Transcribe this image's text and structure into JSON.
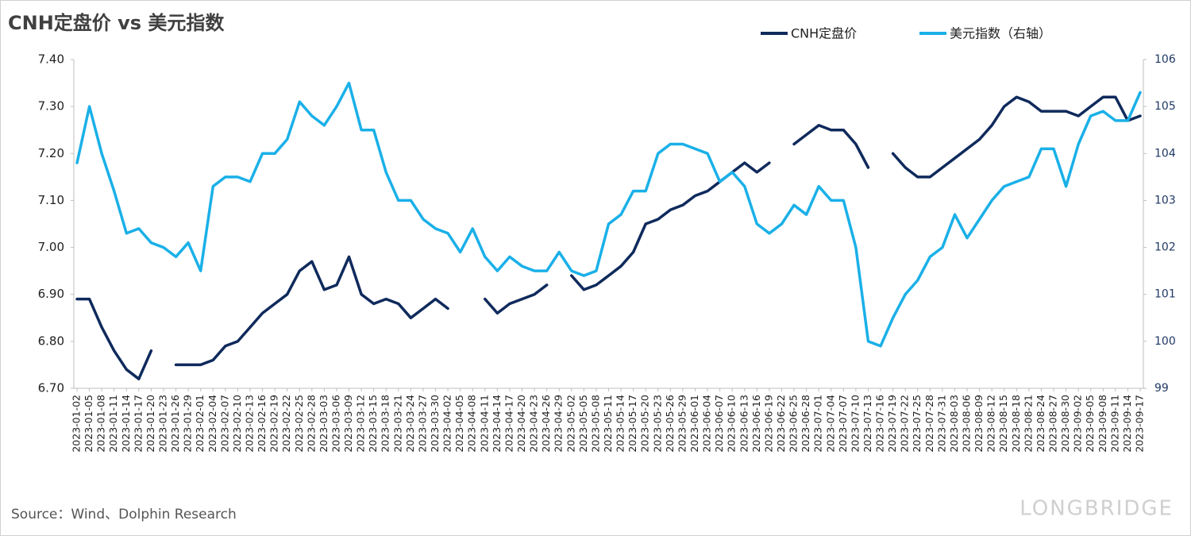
{
  "chart_data": {
    "type": "line",
    "title": "CNH定盘价 vs 美元指数",
    "source": "Source：Wind、Dolphin Research",
    "watermark": "LONGBRIDGE",
    "legend": "top-right",
    "x": [
      "2023-01-02",
      "2023-01-05",
      "2023-01-08",
      "2023-01-11",
      "2023-01-14",
      "2023-01-17",
      "2023-01-20",
      "2023-01-23",
      "2023-01-26",
      "2023-01-29",
      "2023-02-01",
      "2023-02-04",
      "2023-02-07",
      "2023-02-10",
      "2023-02-13",
      "2023-02-16",
      "2023-02-19",
      "2023-02-22",
      "2023-02-25",
      "2023-02-28",
      "2023-03-03",
      "2023-03-06",
      "2023-03-09",
      "2023-03-12",
      "2023-03-15",
      "2023-03-18",
      "2023-03-21",
      "2023-03-24",
      "2023-03-27",
      "2023-03-30",
      "2023-04-02",
      "2023-04-05",
      "2023-04-08",
      "2023-04-11",
      "2023-04-14",
      "2023-04-17",
      "2023-04-20",
      "2023-04-23",
      "2023-04-26",
      "2023-04-29",
      "2023-05-02",
      "2023-05-05",
      "2023-05-08",
      "2023-05-11",
      "2023-05-14",
      "2023-05-17",
      "2023-05-20",
      "2023-05-23",
      "2023-05-26",
      "2023-05-29",
      "2023-06-01",
      "2023-06-04",
      "2023-06-07",
      "2023-06-10",
      "2023-06-13",
      "2023-06-16",
      "2023-06-19",
      "2023-06-22",
      "2023-06-25",
      "2023-06-28",
      "2023-07-01",
      "2023-07-04",
      "2023-07-07",
      "2023-07-10",
      "2023-07-13",
      "2023-07-16",
      "2023-07-19",
      "2023-07-22",
      "2023-07-25",
      "2023-07-28",
      "2023-07-31",
      "2023-08-03",
      "2023-08-06",
      "2023-08-09",
      "2023-08-12",
      "2023-08-15",
      "2023-08-18",
      "2023-08-21",
      "2023-08-24",
      "2023-08-27",
      "2023-08-30",
      "2023-09-02",
      "2023-09-05",
      "2023-09-08",
      "2023-09-11",
      "2023-09-14",
      "2023-09-17"
    ],
    "series": [
      {
        "name": "CNH定盘价",
        "color": "#0f2a5c",
        "values": [
          6.89,
          6.89,
          6.83,
          6.78,
          6.74,
          6.72,
          6.78,
          null,
          6.75,
          6.75,
          6.75,
          6.76,
          6.79,
          6.8,
          6.83,
          6.86,
          6.88,
          6.9,
          6.95,
          6.97,
          6.91,
          6.92,
          6.98,
          6.9,
          6.88,
          6.89,
          6.88,
          6.85,
          6.87,
          6.89,
          6.87,
          null,
          null,
          6.89,
          6.86,
          6.88,
          6.89,
          6.9,
          6.92,
          null,
          6.94,
          6.91,
          6.92,
          6.94,
          6.96,
          6.99,
          7.05,
          7.06,
          7.08,
          7.09,
          7.11,
          7.12,
          7.14,
          7.16,
          7.18,
          7.16,
          7.18,
          null,
          7.22,
          7.24,
          7.26,
          7.25,
          7.25,
          7.22,
          7.17,
          null,
          7.2,
          7.17,
          7.15,
          7.15,
          7.17,
          7.19,
          7.21,
          7.23,
          7.26,
          7.3,
          7.32,
          7.31,
          7.29,
          7.29,
          7.29,
          7.28,
          7.3,
          7.32,
          7.32,
          7.27,
          7.28
        ]
      },
      {
        "name": "美元指数（右轴）",
        "color": "#1ab0e8",
        "axis": "y2",
        "values": [
          103.8,
          105,
          104,
          103.2,
          102.3,
          102.4,
          102.1,
          102.0,
          101.8,
          102.1,
          101.5,
          103.3,
          103.5,
          103.5,
          103.4,
          104.0,
          104.0,
          104.3,
          105.1,
          104.8,
          104.6,
          105.0,
          105.5,
          104.5,
          104.5,
          103.6,
          103.0,
          103.0,
          102.6,
          102.4,
          102.3,
          101.9,
          102.4,
          101.8,
          101.5,
          101.8,
          101.6,
          101.5,
          101.5,
          101.9,
          101.5,
          101.4,
          101.5,
          102.5,
          102.7,
          103.2,
          103.2,
          104.0,
          104.2,
          104.2,
          104.1,
          104.0,
          103.4,
          103.6,
          103.3,
          102.5,
          102.3,
          102.5,
          102.9,
          102.7,
          103.3,
          103.0,
          103.0,
          102.0,
          100.0,
          99.9,
          100.5,
          101.0,
          101.3,
          101.8,
          102.0,
          102.7,
          102.2,
          102.6,
          103.0,
          103.3,
          103.4,
          103.5,
          104.1,
          104.1,
          103.3,
          104.2,
          104.8,
          104.9,
          104.7,
          104.7,
          105.3
        ]
      }
    ],
    "ylim": [
      6.7,
      7.4
    ],
    "yticks": [
      {
        "value": 6.7,
        "label": "6.70"
      },
      {
        "value": 6.8,
        "label": "6.80"
      },
      {
        "value": 6.9,
        "label": "6.90"
      },
      {
        "value": 7.0,
        "label": "7.00"
      },
      {
        "value": 7.1,
        "label": "7.10"
      },
      {
        "value": 7.2,
        "label": "7.20"
      },
      {
        "value": 7.3,
        "label": "7.30"
      },
      {
        "value": 7.4,
        "label": "7.40"
      }
    ],
    "y2lim": [
      99,
      106
    ],
    "y2ticks": [
      99,
      100,
      101,
      102,
      103,
      104,
      105,
      106
    ]
  }
}
